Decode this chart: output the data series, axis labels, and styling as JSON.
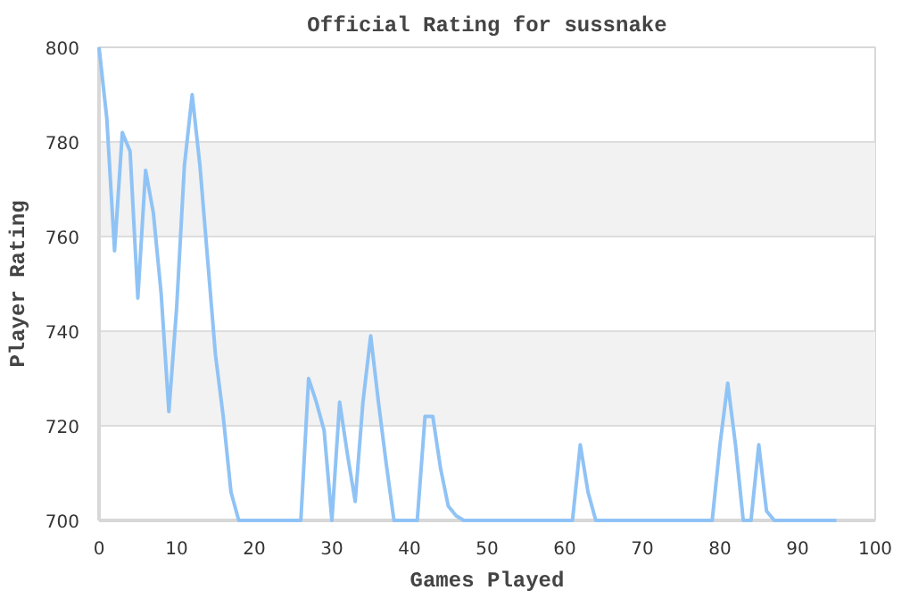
{
  "chart_data": {
    "type": "line",
    "title": "Official Rating for sussnake",
    "xlabel": "Games Played",
    "ylabel": "Player Rating",
    "x": [
      0,
      1,
      2,
      3,
      4,
      5,
      6,
      7,
      8,
      9,
      10,
      11,
      12,
      13,
      14,
      15,
      16,
      17,
      18,
      19,
      26,
      27,
      28,
      29,
      30,
      31,
      32,
      33,
      34,
      35,
      36,
      37,
      38,
      41,
      42,
      43,
      44,
      45,
      46,
      47,
      61,
      62,
      63,
      64,
      79,
      80,
      81,
      82,
      83,
      84,
      85,
      86,
      87,
      95
    ],
    "series": [
      {
        "color": "#90c3f5",
        "values": [
          800,
          785,
          757,
          782,
          778,
          747,
          774,
          765,
          748,
          723,
          745,
          775,
          790,
          775,
          755,
          735,
          722,
          706,
          700,
          700,
          700,
          730,
          725,
          719,
          700,
          725,
          714,
          704,
          725,
          739,
          725,
          712,
          700,
          700,
          722,
          722,
          711,
          703,
          701,
          700,
          700,
          716,
          706,
          700,
          700,
          716,
          729,
          716,
          700,
          700,
          716,
          702,
          700,
          700
        ]
      }
    ],
    "xlim": [
      0,
      100
    ],
    "xticks": [
      0,
      10,
      20,
      30,
      40,
      50,
      60,
      70,
      80,
      90,
      100
    ],
    "ylim": [
      700,
      800
    ],
    "yticks": [
      700,
      720,
      740,
      760,
      780,
      800
    ],
    "grid": "y",
    "marker": "none",
    "line_style": "solid"
  }
}
